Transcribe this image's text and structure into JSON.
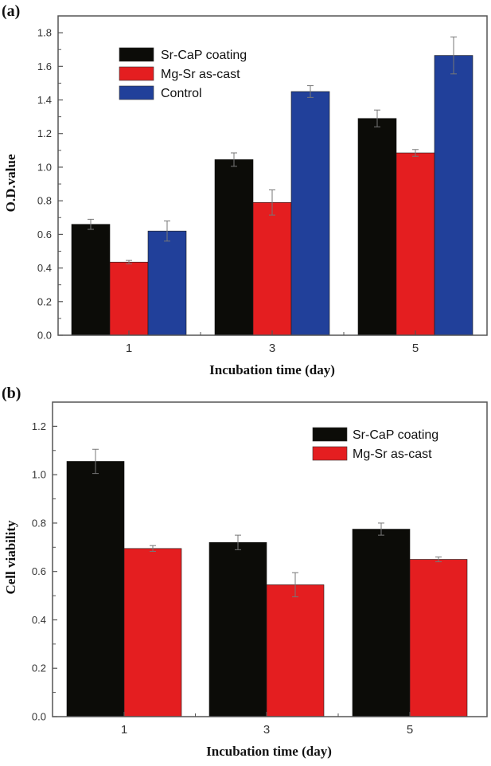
{
  "chart_data": [
    {
      "panel_label": "(a)",
      "type": "bar",
      "title": "",
      "xlabel": "Incubation time (day)",
      "ylabel": "O.D.value",
      "categories": [
        "1",
        "3",
        "5"
      ],
      "ylim": [
        0,
        1.9
      ],
      "yticks": [
        0.0,
        0.2,
        0.4,
        0.6,
        0.8,
        1.0,
        1.2,
        1.4,
        1.6,
        1.8
      ],
      "ytick_labels": [
        "0.0",
        "0.2",
        "0.4",
        "0.6",
        "0.8",
        "1.0",
        "1.2",
        "1.4",
        "1.6",
        "1.8"
      ],
      "grid": false,
      "legend_position": "top-left",
      "series": [
        {
          "name": "Sr-CaP coating",
          "color": "#0c0c08",
          "values": [
            0.66,
            1.045,
            1.29
          ],
          "errors": [
            0.03,
            0.04,
            0.05
          ]
        },
        {
          "name": "Mg-Sr as-cast",
          "color": "#e41e20",
          "values": [
            0.435,
            0.79,
            1.085
          ],
          "errors": [
            0.01,
            0.075,
            0.02
          ]
        },
        {
          "name": "Control",
          "color": "#21409a",
          "values": [
            0.62,
            1.45,
            1.665
          ],
          "errors": [
            0.06,
            0.035,
            0.11
          ]
        }
      ]
    },
    {
      "panel_label": "(b)",
      "type": "bar",
      "title": "",
      "xlabel": "Incubation time (day)",
      "ylabel": "Cell viability",
      "categories": [
        "1",
        "3",
        "5"
      ],
      "ylim": [
        0,
        1.3
      ],
      "yticks": [
        0.0,
        0.2,
        0.4,
        0.6,
        0.8,
        1.0,
        1.2
      ],
      "ytick_labels": [
        "0.0",
        "0.2",
        "0.4",
        "0.6",
        "0.8",
        "1.0",
        "1.2"
      ],
      "grid": false,
      "legend_position": "top-right",
      "series": [
        {
          "name": "Sr-CaP coating",
          "color": "#0c0c08",
          "values": [
            1.055,
            0.72,
            0.775
          ],
          "errors": [
            0.05,
            0.03,
            0.025
          ]
        },
        {
          "name": "Mg-Sr as-cast",
          "color": "#e41e20",
          "values": [
            0.695,
            0.545,
            0.65
          ],
          "errors": [
            0.012,
            0.05,
            0.01
          ]
        }
      ]
    }
  ]
}
